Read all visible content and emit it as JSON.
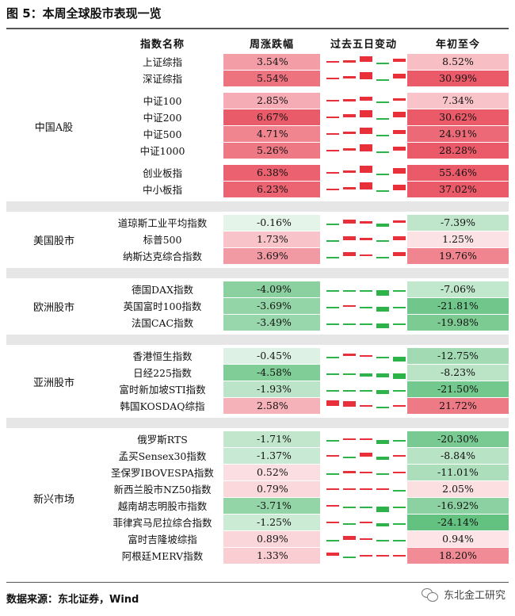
{
  "title": "图 5：本周全球股市表现一览",
  "headers": {
    "name": "指数名称",
    "weekly": "周涨跌幅",
    "trend": "过去五日变动",
    "ytd": "年初至今"
  },
  "groups": [
    {
      "label": "中国A股",
      "blocks": [
        {
          "rows": [
            {
              "name": "上证综指",
              "weekly": "3.54%",
              "weekly_value": 3.54,
              "ytd": "8.52%",
              "ytd_value": 8.52,
              "days": [
                0.3,
                0.5,
                1.6,
                -0.2,
                0.9
              ]
            },
            {
              "name": "深证综指",
              "weekly": "5.54%",
              "weekly_value": 5.54,
              "ytd": "30.99%",
              "ytd_value": 30.99,
              "days": [
                0.4,
                0.7,
                2.0,
                -0.2,
                1.4
              ]
            }
          ]
        },
        {
          "rows": [
            {
              "name": "中证100",
              "weekly": "2.85%",
              "weekly_value": 2.85,
              "ytd": "7.34%",
              "ytd_value": 7.34,
              "days": [
                0.3,
                0.5,
                1.3,
                -0.2,
                0.7
              ]
            },
            {
              "name": "中证200",
              "weekly": "6.67%",
              "weekly_value": 6.67,
              "ytd": "30.62%",
              "ytd_value": 30.62,
              "days": [
                0.4,
                0.9,
                2.2,
                -0.1,
                1.6
              ]
            },
            {
              "name": "中证500",
              "weekly": "4.71%",
              "weekly_value": 4.71,
              "ytd": "24.91%",
              "ytd_value": 24.91,
              "days": [
                0.3,
                0.8,
                1.9,
                -0.2,
                1.2
              ]
            },
            {
              "name": "中证1000",
              "weekly": "5.26%",
              "weekly_value": 5.26,
              "ytd": "28.28%",
              "ytd_value": 28.28,
              "days": [
                0.3,
                0.8,
                2.0,
                -0.2,
                1.3
              ]
            }
          ]
        },
        {
          "rows": [
            {
              "name": "创业板指",
              "weekly": "6.38%",
              "weekly_value": 6.38,
              "ytd": "55.46%",
              "ytd_value": 55.46,
              "days": [
                0.4,
                0.8,
                2.2,
                -0.2,
                1.5
              ]
            },
            {
              "name": "中小板指",
              "weekly": "6.23%",
              "weekly_value": 6.23,
              "ytd": "37.02%",
              "ytd_value": 37.02,
              "days": [
                0.4,
                0.8,
                2.1,
                -0.2,
                1.5
              ]
            }
          ]
        }
      ]
    },
    {
      "label": "美国股市",
      "blocks": [
        {
          "rows": [
            {
              "name": "道琼斯工业平均指数",
              "weekly": "-0.16%",
              "weekly_value": -0.16,
              "ytd": "-7.39%",
              "ytd_value": -7.39,
              "days": [
                -0.2,
                1.0,
                0.5,
                -0.9,
                0.8
              ]
            },
            {
              "name": "标普500",
              "weekly": "1.73%",
              "weekly_value": 1.73,
              "ytd": "1.25%",
              "ytd_value": 1.25,
              "days": [
                -0.2,
                1.0,
                0.5,
                -0.2,
                1.0
              ]
            },
            {
              "name": "纳斯达克综合指数",
              "weekly": "3.69%",
              "weekly_value": 3.69,
              "ytd": "19.76%",
              "ytd_value": 19.76,
              "days": [
                -0.2,
                1.2,
                0.6,
                -0.1,
                1.3
              ]
            }
          ]
        }
      ]
    },
    {
      "label": "欧洲股市",
      "blocks": [
        {
          "rows": [
            {
              "name": "德国DAX指数",
              "weekly": "-4.09%",
              "weekly_value": -4.09,
              "ytd": "-7.06%",
              "ytd_value": -7.06,
              "days": [
                -0.1,
                -0.1,
                -0.2,
                -1.6,
                -0.1
              ]
            },
            {
              "name": "英国富时100指数",
              "weekly": "-3.69%",
              "weekly_value": -3.69,
              "ytd": "-21.81%",
              "ytd_value": -21.81,
              "days": [
                -0.1,
                0.1,
                -0.2,
                -1.5,
                -0.2
              ]
            },
            {
              "name": "法国CAC指数",
              "weekly": "-3.49%",
              "weekly_value": -3.49,
              "ytd": "-19.98%",
              "ytd_value": -19.98,
              "days": [
                -0.1,
                -0.1,
                -0.2,
                -1.5,
                -0.2
              ]
            }
          ]
        }
      ]
    },
    {
      "label": "亚洲股市",
      "blocks": [
        {
          "rows": [
            {
              "name": "香港恒生指数",
              "weekly": "-0.45%",
              "weekly_value": -0.45,
              "ytd": "-12.75%",
              "ytd_value": -12.75,
              "days": [
                -0.5,
                0.7,
                0.4,
                -0.3,
                -1.4
              ]
            },
            {
              "name": "日经225指数",
              "weekly": "-4.58%",
              "weekly_value": -4.58,
              "ytd": "-8.23%",
              "ytd_value": -8.23,
              "days": [
                -0.3,
                -0.6,
                -0.9,
                -1.2,
                -1.6
              ]
            },
            {
              "name": "富时新加坡STI指数",
              "weekly": "-1.93%",
              "weekly_value": -1.93,
              "ytd": "-21.50%",
              "ytd_value": -21.5,
              "days": [
                -0.2,
                -0.2,
                -0.5,
                -1.3,
                -0.2
              ]
            },
            {
              "name": "韩国KOSDAQ综指",
              "weekly": "2.58%",
              "weekly_value": 2.58,
              "ytd": "21.72%",
              "ytd_value": 21.72,
              "days": [
                1.6,
                1.5,
                0.2,
                -0.2,
                0.3
              ]
            }
          ]
        }
      ]
    },
    {
      "label": "新兴市场",
      "blocks": [
        {
          "rows": [
            {
              "name": "俄罗斯RTS",
              "weekly": "-1.71%",
              "weekly_value": -1.71,
              "ytd": "-20.30%",
              "ytd_value": -20.3,
              "days": [
                -0.2,
                0.1,
                0.2,
                -1.2,
                -0.2
              ]
            },
            {
              "name": "孟买Sensex30指数",
              "weekly": "-1.37%",
              "weekly_value": -1.37,
              "ytd": "-8.84%",
              "ytd_value": -8.84,
              "days": [
                0.1,
                -0.5,
                1.0,
                -1.0,
                0.2
              ]
            },
            {
              "name": "圣保罗IBOVESPA指数",
              "weekly": "0.52%",
              "weekly_value": 0.52,
              "ytd": "-11.01%",
              "ytd_value": -11.01,
              "days": [
                -0.3,
                0.5,
                0.3,
                -0.3,
                0.4
              ]
            },
            {
              "name": "新西兰股市NZ50指数",
              "weekly": "0.79%",
              "weekly_value": 0.79,
              "ytd": "2.05%",
              "ytd_value": 2.05,
              "days": [
                0.3,
                0.1,
                0.4,
                0.1,
                -0.2
              ]
            },
            {
              "name": "越南胡志明股市指数",
              "weekly": "-3.71%",
              "weekly_value": -3.71,
              "ytd": "-16.92%",
              "ytd_value": -16.92,
              "days": [
                0.1,
                -0.1,
                -0.2,
                -1.6,
                -0.3
              ]
            },
            {
              "name": "菲律宾马尼拉综合指数",
              "weekly": "-1.25%",
              "weekly_value": -1.25,
              "ytd": "-24.14%",
              "ytd_value": -24.14,
              "days": [
                0.1,
                -0.1,
                0.3,
                -0.9,
                -0.4
              ]
            },
            {
              "name": "富时吉隆坡综指",
              "weekly": "0.89%",
              "weekly_value": 0.89,
              "ytd": "0.94%",
              "ytd_value": 0.94,
              "days": [
                -0.1,
                1.0,
                0.3,
                -0.2,
                -0.1
              ]
            },
            {
              "name": "阿根廷MERV指数",
              "weekly": "1.33%",
              "weekly_value": 1.33,
              "ytd": "18.20%",
              "ytd_value": 18.2,
              "days": [
                0.9,
                -0.2,
                0.3,
                0.3,
                0.3
              ]
            }
          ]
        }
      ]
    }
  ],
  "colors": {
    "up": "#e8303a",
    "down": "#2db34a"
  },
  "source": "数据来源：东北证券，Wind",
  "watermark": "东北金工研究"
}
